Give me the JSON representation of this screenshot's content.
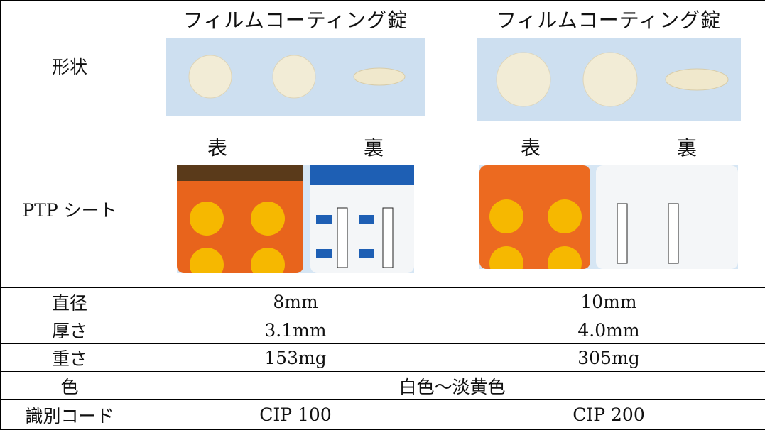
{
  "table": {
    "rows": [
      {
        "label": "形状",
        "cells": [
          "フィルムコーティング錠",
          "フィルムコーティング錠"
        ]
      },
      {
        "label": "PTP シート",
        "cells": [
          {
            "front": "表",
            "back": "裏"
          },
          {
            "front": "表",
            "back": "裏"
          }
        ]
      },
      {
        "label": "直径",
        "cells": [
          "8mm",
          "10mm"
        ]
      },
      {
        "label": "厚さ",
        "cells": [
          "3.1mm",
          "4.0mm"
        ]
      },
      {
        "label": "重さ",
        "cells": [
          "153mg",
          "305mg"
        ]
      },
      {
        "label": "色",
        "cells": [
          "白色～淡黄色"
        ]
      },
      {
        "label": "識別コード",
        "cells": [
          "CIP 100",
          "CIP 200"
        ]
      }
    ]
  }
}
